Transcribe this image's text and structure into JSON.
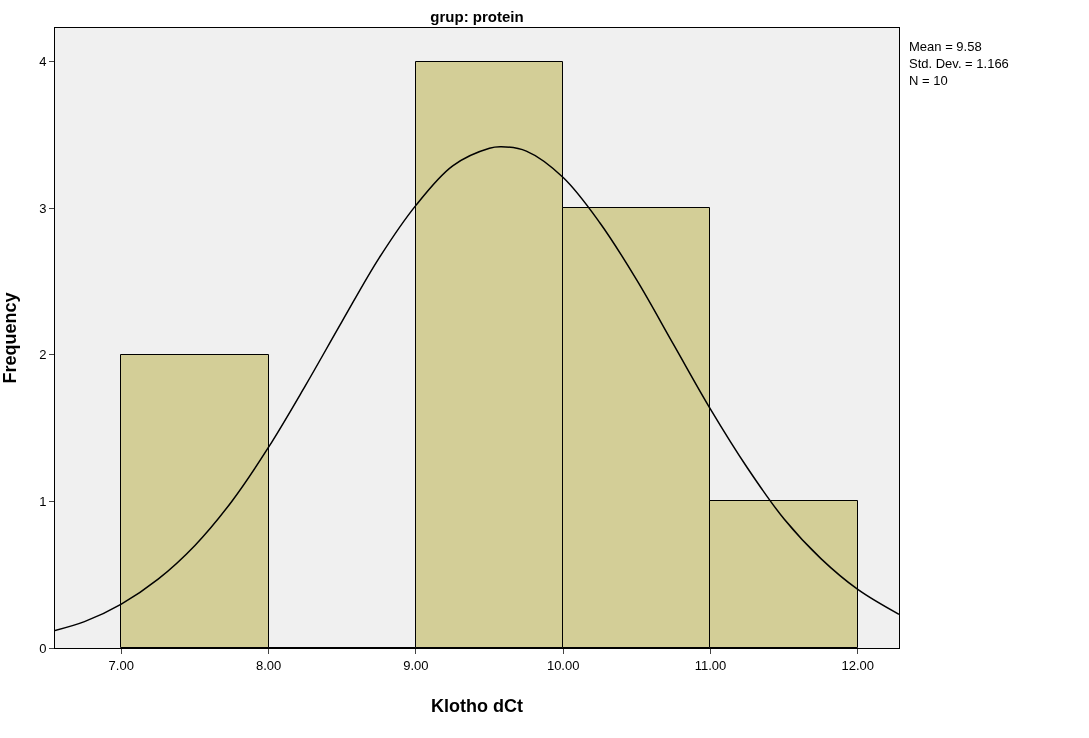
{
  "chart_data": {
    "type": "histogram",
    "title": "grup: protein",
    "xlabel": "Klotho dCt",
    "ylabel": "Frequency",
    "bins": [
      7,
      8,
      9,
      10,
      11,
      12
    ],
    "values": [
      2,
      0,
      4,
      3,
      1
    ],
    "color": "#d3ce97",
    "series": [
      {
        "type": "line",
        "color": "#000000",
        "x": [
          6.55,
          6.75,
          7.0,
          7.25,
          7.5,
          7.75,
          8.0,
          8.25,
          8.5,
          8.75,
          9.0,
          9.25,
          9.5,
          9.58,
          9.75,
          10.0,
          10.25,
          10.5,
          10.75,
          11.0,
          11.25,
          11.5,
          11.75,
          12.0,
          12.28
        ],
        "values": [
          0.12,
          0.18,
          0.3,
          0.47,
          0.7,
          1.0,
          1.37,
          1.79,
          2.23,
          2.66,
          3.02,
          3.29,
          3.41,
          3.42,
          3.39,
          3.21,
          2.9,
          2.51,
          2.07,
          1.63,
          1.23,
          0.88,
          0.61,
          0.4,
          0.23
        ]
      }
    ],
    "xlim": [
      6.55,
      12.28
    ],
    "xticks": [
      {
        "value": 7,
        "label": "7.00"
      },
      {
        "value": 8,
        "label": "8.00"
      },
      {
        "value": 9,
        "label": "9.00"
      },
      {
        "value": 10,
        "label": "10.00"
      },
      {
        "value": 11,
        "label": "11.00"
      },
      {
        "value": 12,
        "label": "12.00"
      }
    ],
    "ylim": [
      0,
      4.23
    ],
    "yticks": [
      0,
      1,
      2,
      3,
      4
    ],
    "annotations": [
      "Mean = 9.58",
      "Std. Dev. = 1.166",
      "N = 10"
    ],
    "grid": false,
    "marker": "none",
    "line_style": "solid"
  }
}
